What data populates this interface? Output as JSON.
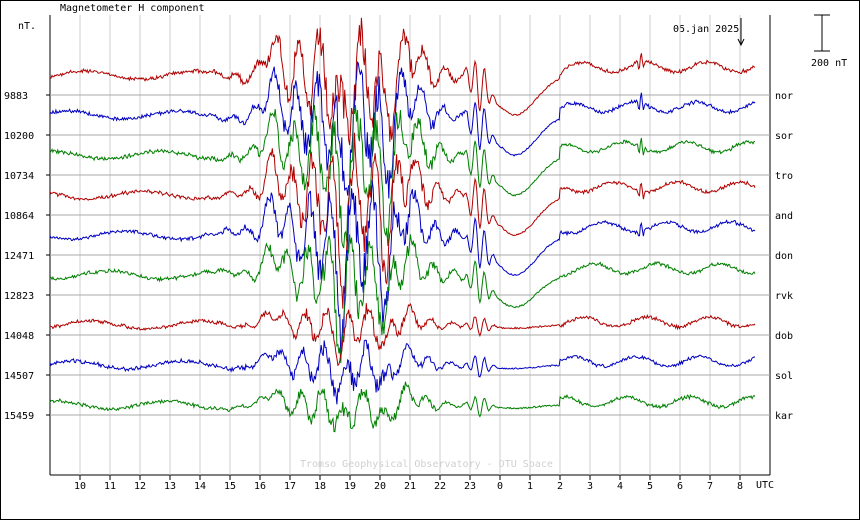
{
  "chart_data": {
    "type": "line",
    "title": "Magnetometer H component",
    "ylabel": "nT.",
    "date_label": "05.jan 2025",
    "scale_label": "200 nT",
    "x_unit": "UTC",
    "watermark": "Tromso Geophysical Observatory - DTU Space",
    "x_ticks": [
      "10",
      "11",
      "12",
      "13",
      "14",
      "15",
      "16",
      "17",
      "18",
      "19",
      "20",
      "21",
      "22",
      "23",
      "0",
      "1",
      "2",
      "3",
      "4",
      "5",
      "6",
      "7",
      "8"
    ],
    "x_range_hours": [
      9.0,
      33.0
    ],
    "grid": true,
    "stations": [
      {
        "name": "nor",
        "baseline": "9883",
        "color": "#b00000"
      },
      {
        "name": "sor",
        "baseline": "10200",
        "color": "#0000c0"
      },
      {
        "name": "tro",
        "baseline": "10734",
        "color": "#008000"
      },
      {
        "name": "and",
        "baseline": "10864",
        "color": "#b00000"
      },
      {
        "name": "don",
        "baseline": "12471",
        "color": "#0000c0"
      },
      {
        "name": "rvk",
        "baseline": "12823",
        "color": "#008000"
      },
      {
        "name": "dob",
        "baseline": "14048",
        "color": "#b00000"
      },
      {
        "name": "sol",
        "baseline": "14507",
        "color": "#0000c0"
      },
      {
        "name": "kar",
        "baseline": "15459",
        "color": "#008000"
      }
    ]
  }
}
